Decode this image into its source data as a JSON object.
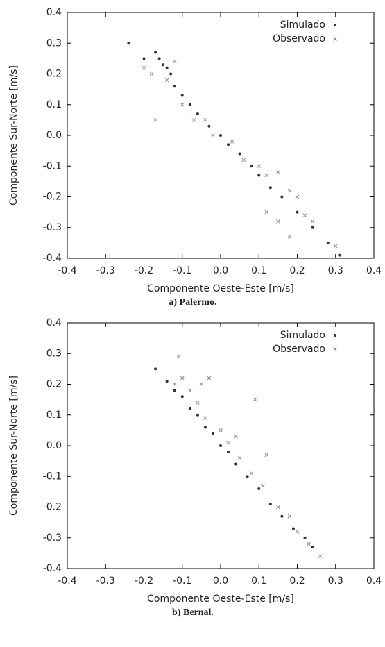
{
  "chart_data": [
    {
      "type": "scatter",
      "caption": "a) Palermo.",
      "xlabel": "Componente Oeste-Este [m/s]",
      "ylabel": "Componente Sur-Norte [m/s]",
      "xlim": [
        -0.4,
        0.4
      ],
      "ylim": [
        -0.4,
        0.4
      ],
      "xticks": [
        -0.4,
        -0.3,
        -0.2,
        -0.1,
        {
          "value": 0,
          "label": "0.0"
        },
        0.1,
        0.2,
        0.3,
        0.4
      ],
      "yticks": [
        -0.4,
        -0.3,
        -0.2,
        -0.1,
        {
          "value": 0,
          "label": "0.0"
        },
        0.1,
        0.2,
        0.3,
        0.4
      ],
      "legend": "upper right",
      "series": [
        {
          "name": "Simulado",
          "color": "#333333",
          "marker": "dot",
          "x": [
            -0.24,
            -0.2,
            -0.17,
            -0.16,
            -0.15,
            -0.14,
            -0.13,
            -0.12,
            -0.1,
            -0.08,
            -0.06,
            -0.03,
            0,
            0.02,
            0.05,
            0.08,
            0.1,
            0.13,
            0.16,
            0.2,
            0.24,
            0.28,
            0.31
          ],
          "y": [
            0.3,
            0.25,
            0.27,
            0.25,
            0.23,
            0.22,
            0.2,
            0.16,
            0.13,
            0.1,
            0.07,
            0.03,
            0,
            -0.03,
            -0.06,
            -0.1,
            -0.13,
            -0.17,
            -0.2,
            -0.25,
            -0.3,
            -0.35,
            -0.39
          ]
        },
        {
          "name": "Observado",
          "color": "#8a8a8a",
          "marker": "cross",
          "x": [
            -0.2,
            -0.18,
            -0.17,
            -0.14,
            -0.12,
            -0.1,
            -0.07,
            -0.04,
            -0.02,
            0.03,
            0.06,
            0.1,
            0.12,
            0.15,
            0.18,
            0.2,
            0.24,
            0.22,
            0.15,
            0.18,
            0.12,
            0.3
          ],
          "y": [
            0.22,
            0.2,
            0.05,
            0.18,
            0.24,
            0.1,
            0.05,
            0.05,
            0,
            -0.02,
            -0.08,
            -0.1,
            -0.13,
            -0.12,
            -0.18,
            -0.2,
            -0.28,
            -0.26,
            -0.28,
            -0.33,
            -0.25,
            -0.36
          ]
        }
      ]
    },
    {
      "type": "scatter",
      "caption": "b) Bernal.",
      "xlabel": "Componente Oeste-Este [m/s]",
      "ylabel": "Componente Sur-Norte [m/s]",
      "xlim": [
        -0.4,
        0.4
      ],
      "ylim": [
        -0.4,
        0.4
      ],
      "xticks": [
        -0.4,
        -0.3,
        -0.2,
        -0.1,
        {
          "value": 0,
          "label": "0.0"
        },
        0.1,
        0.2,
        0.3,
        0.4
      ],
      "yticks": [
        -0.4,
        -0.3,
        -0.2,
        -0.1,
        {
          "value": 0,
          "label": "0.0"
        },
        0.1,
        0.2,
        0.3,
        0.4
      ],
      "legend": "upper right",
      "series": [
        {
          "name": "Simulado",
          "color": "#333333",
          "marker": "dot",
          "x": [
            -0.17,
            -0.14,
            -0.12,
            -0.1,
            -0.08,
            -0.06,
            -0.04,
            -0.02,
            0,
            0.02,
            0.04,
            0.07,
            0.1,
            0.13,
            0.16,
            0.19,
            0.22,
            0.24
          ],
          "y": [
            0.25,
            0.21,
            0.18,
            0.16,
            0.12,
            0.1,
            0.06,
            0.04,
            0,
            -0.02,
            -0.06,
            -0.1,
            -0.14,
            -0.19,
            -0.23,
            -0.27,
            -0.3,
            -0.33
          ]
        },
        {
          "name": "Observado",
          "color": "#8a8a8a",
          "marker": "cross",
          "x": [
            -0.12,
            -0.11,
            -0.1,
            -0.08,
            -0.06,
            -0.05,
            -0.04,
            -0.03,
            0,
            0.02,
            0.04,
            0.05,
            0.08,
            0.09,
            0.11,
            0.12,
            0.15,
            0.18,
            0.2,
            0.23,
            0.26
          ],
          "y": [
            0.2,
            0.29,
            0.22,
            0.18,
            0.14,
            0.2,
            0.09,
            0.22,
            0.05,
            0.01,
            0.03,
            -0.04,
            -0.09,
            0.15,
            -0.13,
            -0.03,
            -0.2,
            -0.23,
            -0.28,
            -0.32,
            -0.36
          ]
        }
      ]
    }
  ]
}
